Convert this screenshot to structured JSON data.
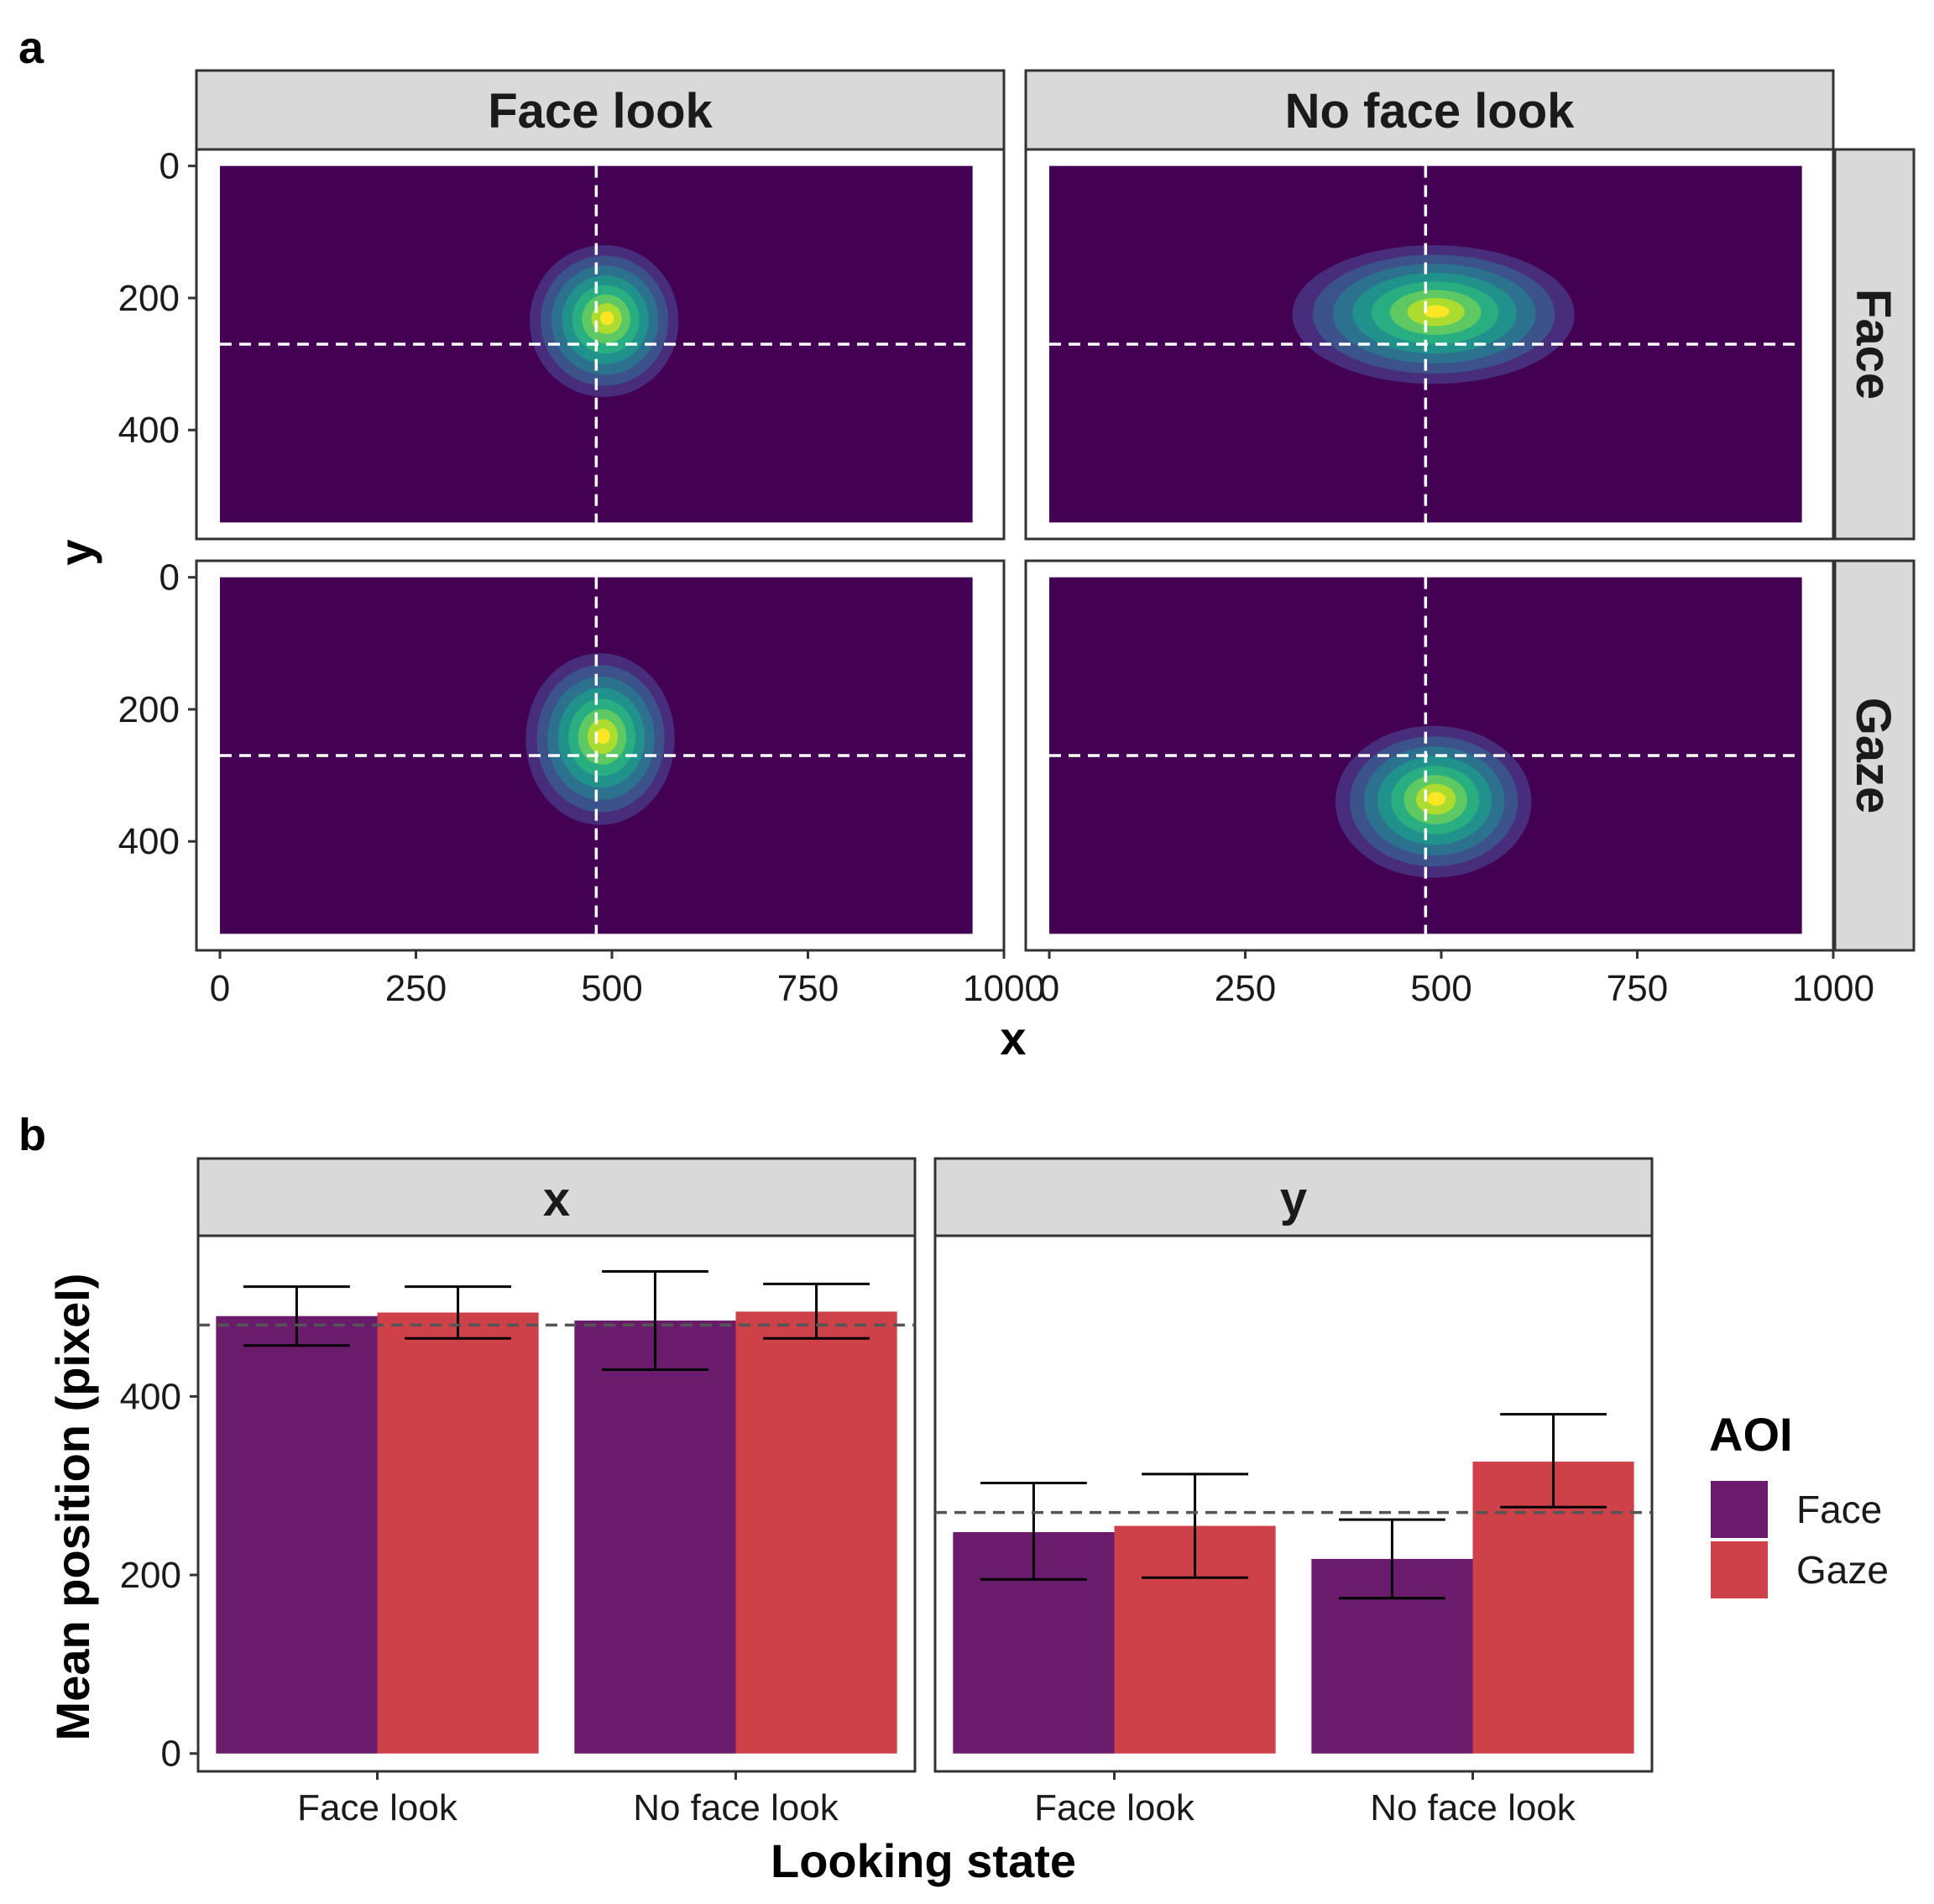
{
  "panel_labels": {
    "a": "a",
    "b": "b"
  },
  "colors": {
    "viridis": [
      "#440154",
      "#472d7b",
      "#3b528b",
      "#2c728e",
      "#21918c",
      "#28ae80",
      "#5ec962",
      "#addc30",
      "#fde725"
    ],
    "aoi_face": "#6a1b6b",
    "aoi_gaze": "#ce4149",
    "strip_bg": "#d9d9d9",
    "reference_line_a": "#ffffff",
    "reference_line_b": "#555555"
  },
  "chart_data": [
    {
      "type": "heatmap",
      "description_kind": "2D density contour facets",
      "columns": [
        "Face look",
        "No face look"
      ],
      "rows": [
        "Face",
        "Gaze"
      ],
      "xlabel": "x",
      "ylabel": "y",
      "xlim": [
        -30,
        1000
      ],
      "ylim": [
        565,
        -25
      ],
      "y_reversed": true,
      "x_ticks": [
        0,
        250,
        500,
        750,
        1000
      ],
      "y_ticks": [
        0,
        200,
        400
      ],
      "x_tick_labels": [
        "0",
        "250",
        "500",
        "750",
        "1000"
      ],
      "y_tick_labels": [
        "0",
        "200",
        "400"
      ],
      "screen": {
        "x": [
          0,
          960
        ],
        "y": [
          0,
          540
        ]
      },
      "reference_lines": {
        "x": 480,
        "y": 270
      },
      "facets": [
        {
          "column": "Face look",
          "row": "Face",
          "peak": [
            490,
            235
          ],
          "spread": [
            95,
            115
          ]
        },
        {
          "column": "No face look",
          "row": "Face",
          "peak": [
            490,
            225
          ],
          "spread": [
            180,
            105
          ]
        },
        {
          "column": "Face look",
          "row": "Gaze",
          "peak": [
            485,
            245
          ],
          "spread": [
            95,
            130
          ]
        },
        {
          "column": "No face look",
          "row": "Gaze",
          "peak": [
            490,
            340
          ],
          "spread": [
            125,
            115
          ]
        }
      ]
    },
    {
      "type": "bar",
      "facets": [
        "x",
        "y"
      ],
      "categories": [
        "Face look",
        "No face look"
      ],
      "series": [
        {
          "name": "Face",
          "x_values": [
            490,
            485
          ],
          "y_values": [
            248,
            218
          ],
          "x_err": [
            [
              457,
              523
            ],
            [
              430,
              540
            ]
          ],
          "y_err": [
            [
              195,
              303
            ],
            [
              174,
              262
            ]
          ]
        },
        {
          "name": "Gaze",
          "x_values": [
            494,
            495
          ],
          "y_values": [
            255,
            327
          ],
          "x_err": [
            [
              465,
              523
            ],
            [
              465,
              526
            ]
          ],
          "y_err": [
            [
              197,
              313
            ],
            [
              276,
              380
            ]
          ]
        }
      ],
      "reference_lines": {
        "x": 480,
        "y": 270
      },
      "xlabel": "Looking state",
      "ylabel": "Mean position (pixel)",
      "ylim": [
        -20,
        580
      ],
      "y_ticks": [
        0,
        200,
        400
      ],
      "y_tick_labels": [
        "0",
        "200",
        "400"
      ],
      "legend": {
        "title": "AOI",
        "entries": [
          "Face",
          "Gaze"
        ],
        "position": "right"
      }
    }
  ]
}
